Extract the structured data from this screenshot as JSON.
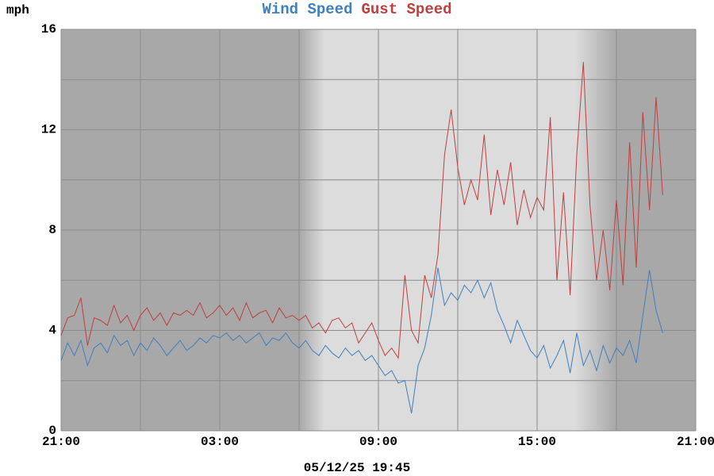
{
  "chart_data": {
    "type": "line",
    "y_label": "mph",
    "footer": "05/12/25 19:45",
    "x": [
      0,
      0.25,
      0.5,
      0.75,
      1,
      1.25,
      1.5,
      1.75,
      2,
      2.25,
      2.5,
      2.75,
      3,
      3.25,
      3.5,
      3.75,
      4,
      4.25,
      4.5,
      4.75,
      5,
      5.25,
      5.5,
      5.75,
      6,
      6.25,
      6.5,
      6.75,
      7,
      7.25,
      7.5,
      7.75,
      8,
      8.25,
      8.5,
      8.75,
      9,
      9.25,
      9.5,
      9.75,
      10,
      10.25,
      10.5,
      10.75,
      11,
      11.25,
      11.5,
      11.75,
      12,
      12.25,
      12.5,
      12.75,
      13,
      13.25,
      13.5,
      13.75,
      14,
      14.25,
      14.5,
      14.75,
      15,
      15.25,
      15.5,
      15.75,
      16,
      16.25,
      16.5,
      16.75,
      17,
      17.25,
      17.5,
      17.75,
      18,
      18.25,
      18.5,
      18.75,
      19,
      19.25,
      19.5,
      19.75,
      20,
      20.25,
      20.5,
      20.75,
      21,
      21.25,
      21.5,
      21.75,
      22,
      22.25,
      22.5,
      22.75
    ],
    "series": [
      {
        "name": "Wind Speed",
        "color": "#3f7fbf",
        "values": [
          2.8,
          3.5,
          3.0,
          3.6,
          2.6,
          3.3,
          3.5,
          3.1,
          3.8,
          3.4,
          3.6,
          3.0,
          3.5,
          3.2,
          3.7,
          3.4,
          3.0,
          3.3,
          3.6,
          3.2,
          3.4,
          3.7,
          3.5,
          3.8,
          3.7,
          3.9,
          3.6,
          3.8,
          3.5,
          3.7,
          3.9,
          3.4,
          3.7,
          3.6,
          3.9,
          3.5,
          3.3,
          3.6,
          3.2,
          3.0,
          3.4,
          3.1,
          2.9,
          3.3,
          3.0,
          3.2,
          2.8,
          3.0,
          2.6,
          2.2,
          2.4,
          1.9,
          2.0,
          0.7,
          2.6,
          3.3,
          4.6,
          6.5,
          5.0,
          5.5,
          5.2,
          5.8,
          5.5,
          6.0,
          5.3,
          5.9,
          4.8,
          4.2,
          3.5,
          4.4,
          3.8,
          3.2,
          2.9,
          3.4,
          2.5,
          3.0,
          3.6,
          2.3,
          3.9,
          2.6,
          3.2,
          2.4,
          3.4,
          2.7,
          3.3,
          3.0,
          3.6,
          2.7,
          4.6,
          6.4,
          4.8,
          3.9
        ]
      },
      {
        "name": "Gust Speed",
        "color": "#bf3f3f",
        "values": [
          3.8,
          4.5,
          4.6,
          5.3,
          3.4,
          4.5,
          4.4,
          4.2,
          5.0,
          4.3,
          4.6,
          4.0,
          4.6,
          4.9,
          4.4,
          4.7,
          4.2,
          4.7,
          4.6,
          4.8,
          4.6,
          5.1,
          4.5,
          4.7,
          5.0,
          4.6,
          4.9,
          4.4,
          5.1,
          4.5,
          4.7,
          4.8,
          4.3,
          4.9,
          4.5,
          4.6,
          4.4,
          4.6,
          4.1,
          4.3,
          3.9,
          4.4,
          4.5,
          4.1,
          4.3,
          3.5,
          3.9,
          4.3,
          3.6,
          3.0,
          3.3,
          2.9,
          6.2,
          4.0,
          3.5,
          6.2,
          5.3,
          7.0,
          11.0,
          12.8,
          10.5,
          9.0,
          10.0,
          9.2,
          11.8,
          8.6,
          10.4,
          9.0,
          10.7,
          8.2,
          9.6,
          8.5,
          9.3,
          8.8,
          12.5,
          6.0,
          9.5,
          5.4,
          11.0,
          14.7,
          9.0,
          6.0,
          8.0,
          5.6,
          9.2,
          5.8,
          11.5,
          6.5,
          12.7,
          8.8,
          13.3,
          9.4
        ]
      }
    ],
    "xlim": [
      0,
      24
    ],
    "xticks": [
      {
        "value": 0,
        "label": "21:00"
      },
      {
        "value": 6,
        "label": "03:00"
      },
      {
        "value": 12,
        "label": "09:00"
      },
      {
        "value": 18,
        "label": "15:00"
      },
      {
        "value": 24,
        "label": "21:00"
      }
    ],
    "xminor": [
      3,
      9,
      15,
      21
    ],
    "ylim": [
      0,
      16
    ],
    "yticks": [
      0,
      4,
      8,
      12,
      16
    ],
    "yminor": [
      2,
      6,
      10,
      14
    ],
    "grid": true
  }
}
